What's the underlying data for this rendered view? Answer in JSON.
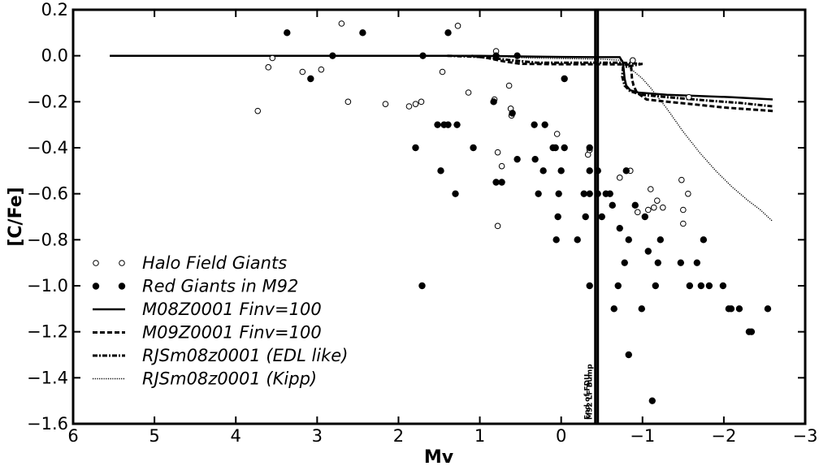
{
  "chart_data": {
    "type": "scatter",
    "xlabel": "Mv",
    "ylabel": "[C/Fe]",
    "xlim": [
      6,
      -3
    ],
    "ylim": [
      -1.6,
      0.2
    ],
    "x_ticks": [
      6,
      5,
      4,
      3,
      2,
      1,
      0,
      -1,
      -2,
      -3
    ],
    "x_tick_labels": [
      "6",
      "5",
      "4",
      "3",
      "2",
      "1",
      "0",
      "−1",
      "−2",
      "−3"
    ],
    "y_ticks": [
      0.2,
      0.0,
      -0.2,
      -0.4,
      -0.6,
      -0.8,
      -1.0,
      -1.2,
      -1.4,
      -1.6
    ],
    "y_tick_labels": [
      "0.2",
      "0.0",
      "−0.2",
      "−0.4",
      "−0.6",
      "−0.8",
      "−1.0",
      "−1.2",
      "−1.4",
      "−1.6"
    ],
    "grid": false,
    "legend_position": "lower-left",
    "vertical_lines": [
      {
        "x": -0.42,
        "label": "End of FDU"
      },
      {
        "x": -0.45,
        "label": "M92 LF Bump"
      }
    ],
    "series": [
      {
        "name": "Halo Field Giants",
        "kind": "scatter",
        "marker": "open-circle",
        "points": [
          [
            3.73,
            -0.24
          ],
          [
            3.6,
            -0.05
          ],
          [
            3.55,
            -0.01
          ],
          [
            3.18,
            -0.07
          ],
          [
            2.95,
            -0.06
          ],
          [
            2.7,
            0.14
          ],
          [
            2.62,
            -0.2
          ],
          [
            2.16,
            -0.21
          ],
          [
            1.87,
            -0.22
          ],
          [
            1.79,
            -0.21
          ],
          [
            1.72,
            -0.2
          ],
          [
            1.46,
            -0.07
          ],
          [
            1.27,
            0.13
          ],
          [
            1.14,
            -0.16
          ],
          [
            0.82,
            -0.19
          ],
          [
            0.8,
            0.02
          ],
          [
            0.78,
            -0.74
          ],
          [
            0.78,
            -0.42
          ],
          [
            0.73,
            -0.48
          ],
          [
            0.64,
            -0.13
          ],
          [
            0.62,
            -0.23
          ],
          [
            0.61,
            -0.26
          ],
          [
            0.05,
            -0.34
          ],
          [
            -0.33,
            -0.43
          ],
          [
            -0.35,
            -0.41
          ],
          [
            -0.72,
            -0.53
          ],
          [
            -0.85,
            -0.5
          ],
          [
            -0.88,
            -0.02
          ],
          [
            -0.94,
            -0.68
          ],
          [
            -1.07,
            -0.67
          ],
          [
            -1.1,
            -0.58
          ],
          [
            -1.14,
            -0.66
          ],
          [
            -1.18,
            -0.63
          ],
          [
            -1.25,
            -0.66
          ],
          [
            -1.48,
            -0.54
          ],
          [
            -1.5,
            -0.67
          ],
          [
            -1.5,
            -0.73
          ],
          [
            -1.56,
            -0.6
          ],
          [
            -1.57,
            -0.18
          ]
        ]
      },
      {
        "name": "Red Giants in M92",
        "kind": "scatter",
        "marker": "filled-circle",
        "points": [
          [
            3.37,
            0.1
          ],
          [
            3.08,
            -0.1
          ],
          [
            2.81,
            0.0
          ],
          [
            2.44,
            0.1
          ],
          [
            1.79,
            -0.4
          ],
          [
            1.71,
            -1.0
          ],
          [
            1.7,
            0.0
          ],
          [
            1.52,
            -0.3
          ],
          [
            1.48,
            -0.5
          ],
          [
            1.44,
            -0.3
          ],
          [
            1.39,
            -0.3
          ],
          [
            1.39,
            0.1
          ],
          [
            1.3,
            -0.6
          ],
          [
            1.28,
            -0.3
          ],
          [
            1.08,
            -0.4
          ],
          [
            0.83,
            -0.2
          ],
          [
            0.8,
            -0.55
          ],
          [
            0.8,
            0.0
          ],
          [
            0.73,
            -0.55
          ],
          [
            0.6,
            -0.25
          ],
          [
            0.54,
            -0.45
          ],
          [
            0.54,
            0.0
          ],
          [
            0.33,
            -0.3
          ],
          [
            0.32,
            -0.45
          ],
          [
            0.28,
            -0.6
          ],
          [
            0.22,
            -0.5
          ],
          [
            0.2,
            -0.3
          ],
          [
            0.1,
            -0.4
          ],
          [
            0.07,
            -0.4
          ],
          [
            0.06,
            -0.8
          ],
          [
            0.04,
            -0.7
          ],
          [
            0.03,
            -0.6
          ],
          [
            0.0,
            -0.5
          ],
          [
            -0.04,
            -0.1
          ],
          [
            -0.04,
            -0.4
          ],
          [
            -0.2,
            -0.8
          ],
          [
            -0.28,
            -0.6
          ],
          [
            -0.3,
            -0.7
          ],
          [
            -0.35,
            -0.6
          ],
          [
            -0.35,
            -0.5
          ],
          [
            -0.35,
            -1.0
          ],
          [
            -0.35,
            -0.4
          ],
          [
            -0.45,
            -0.6
          ],
          [
            -0.45,
            -0.5
          ],
          [
            -0.5,
            -0.7
          ],
          [
            -0.55,
            -0.6
          ],
          [
            -0.6,
            -0.6
          ],
          [
            -0.63,
            -0.65
          ],
          [
            -0.65,
            -1.1
          ],
          [
            -0.8,
            -0.5
          ],
          [
            -0.72,
            -0.75
          ],
          [
            -0.7,
            -1.0
          ],
          [
            -0.78,
            -0.9
          ],
          [
            -0.83,
            -0.8
          ],
          [
            -0.83,
            -1.3
          ],
          [
            -0.91,
            -0.65
          ],
          [
            -0.99,
            -1.1
          ],
          [
            -1.03,
            -0.7
          ],
          [
            -1.07,
            -0.85
          ],
          [
            -1.12,
            -1.5
          ],
          [
            -1.16,
            -1.0
          ],
          [
            -1.19,
            -0.9
          ],
          [
            -1.22,
            -0.8
          ],
          [
            -1.47,
            -0.9
          ],
          [
            -1.58,
            -1.0
          ],
          [
            -1.67,
            -0.9
          ],
          [
            -1.72,
            -1.0
          ],
          [
            -1.75,
            -0.8
          ],
          [
            -1.82,
            -1.0
          ],
          [
            -1.99,
            -1.0
          ],
          [
            -2.06,
            -1.1
          ],
          [
            -2.09,
            -1.1
          ],
          [
            -2.19,
            -1.1
          ],
          [
            -2.31,
            -1.2
          ],
          [
            -2.34,
            -1.2
          ],
          [
            -2.54,
            -1.1
          ]
        ]
      },
      {
        "name": "M08Z0001 Finv=100",
        "kind": "line",
        "style": "solid",
        "points": [
          [
            5.55,
            0.0
          ],
          [
            3.0,
            0.0
          ],
          [
            1.0,
            0.0
          ],
          [
            0.5,
            -0.003
          ],
          [
            0.0,
            -0.005
          ],
          [
            -0.4,
            -0.006
          ],
          [
            -0.72,
            -0.006
          ],
          [
            -0.76,
            -0.03
          ],
          [
            -0.78,
            -0.1
          ],
          [
            -0.8,
            -0.13
          ],
          [
            -0.85,
            -0.15
          ],
          [
            -0.95,
            -0.16
          ],
          [
            -1.3,
            -0.17
          ],
          [
            -1.7,
            -0.175
          ],
          [
            -2.1,
            -0.18
          ],
          [
            -2.6,
            -0.19
          ]
        ]
      },
      {
        "name": "M09Z0001 Finv=100",
        "kind": "line",
        "style": "dashed",
        "points": [
          [
            1.1,
            0.0
          ],
          [
            0.9,
            -0.01
          ],
          [
            0.7,
            -0.025
          ],
          [
            0.5,
            -0.035
          ],
          [
            0.0,
            -0.037
          ],
          [
            -0.5,
            -0.037
          ],
          [
            -0.82,
            -0.038
          ],
          [
            -0.86,
            -0.045
          ],
          [
            -0.87,
            -0.1
          ],
          [
            -0.89,
            -0.13
          ],
          [
            -0.93,
            -0.16
          ],
          [
            -1.05,
            -0.19
          ],
          [
            -1.3,
            -0.2
          ],
          [
            -1.6,
            -0.21
          ],
          [
            -2.0,
            -0.225
          ],
          [
            -2.6,
            -0.24
          ]
        ]
      },
      {
        "name": "RJSm08z0001 (EDL like)",
        "kind": "line",
        "style": "dash-dot",
        "points": [
          [
            1.4,
            0.0
          ],
          [
            1.0,
            -0.005
          ],
          [
            0.6,
            -0.02
          ],
          [
            0.3,
            -0.03
          ],
          [
            0.0,
            -0.03
          ],
          [
            -0.5,
            -0.03
          ],
          [
            -0.75,
            -0.03
          ],
          [
            -0.97,
            -0.035
          ],
          [
            -1.0,
            -0.035
          ],
          [
            -0.76,
            -0.05
          ],
          [
            -0.75,
            -0.09
          ],
          [
            -0.78,
            -0.13
          ],
          [
            -0.85,
            -0.155
          ],
          [
            -1.0,
            -0.17
          ],
          [
            -1.3,
            -0.18
          ],
          [
            -1.8,
            -0.195
          ],
          [
            -2.2,
            -0.205
          ],
          [
            -2.6,
            -0.22
          ]
        ]
      },
      {
        "name": "RJSm08z0001 (Kipp)",
        "kind": "line",
        "style": "dotted",
        "points": [
          [
            0.65,
            -0.005
          ],
          [
            0.4,
            -0.01
          ],
          [
            0.0,
            -0.012
          ],
          [
            -0.5,
            -0.015
          ],
          [
            -0.75,
            -0.02
          ],
          [
            -0.8,
            -0.04
          ],
          [
            -0.9,
            -0.07
          ],
          [
            -1.0,
            -0.1
          ],
          [
            -1.1,
            -0.14
          ],
          [
            -1.3,
            -0.23
          ],
          [
            -1.5,
            -0.33
          ],
          [
            -1.7,
            -0.42
          ],
          [
            -1.9,
            -0.5
          ],
          [
            -2.1,
            -0.57
          ],
          [
            -2.3,
            -0.63
          ],
          [
            -2.45,
            -0.67
          ],
          [
            -2.6,
            -0.72
          ]
        ]
      }
    ]
  }
}
